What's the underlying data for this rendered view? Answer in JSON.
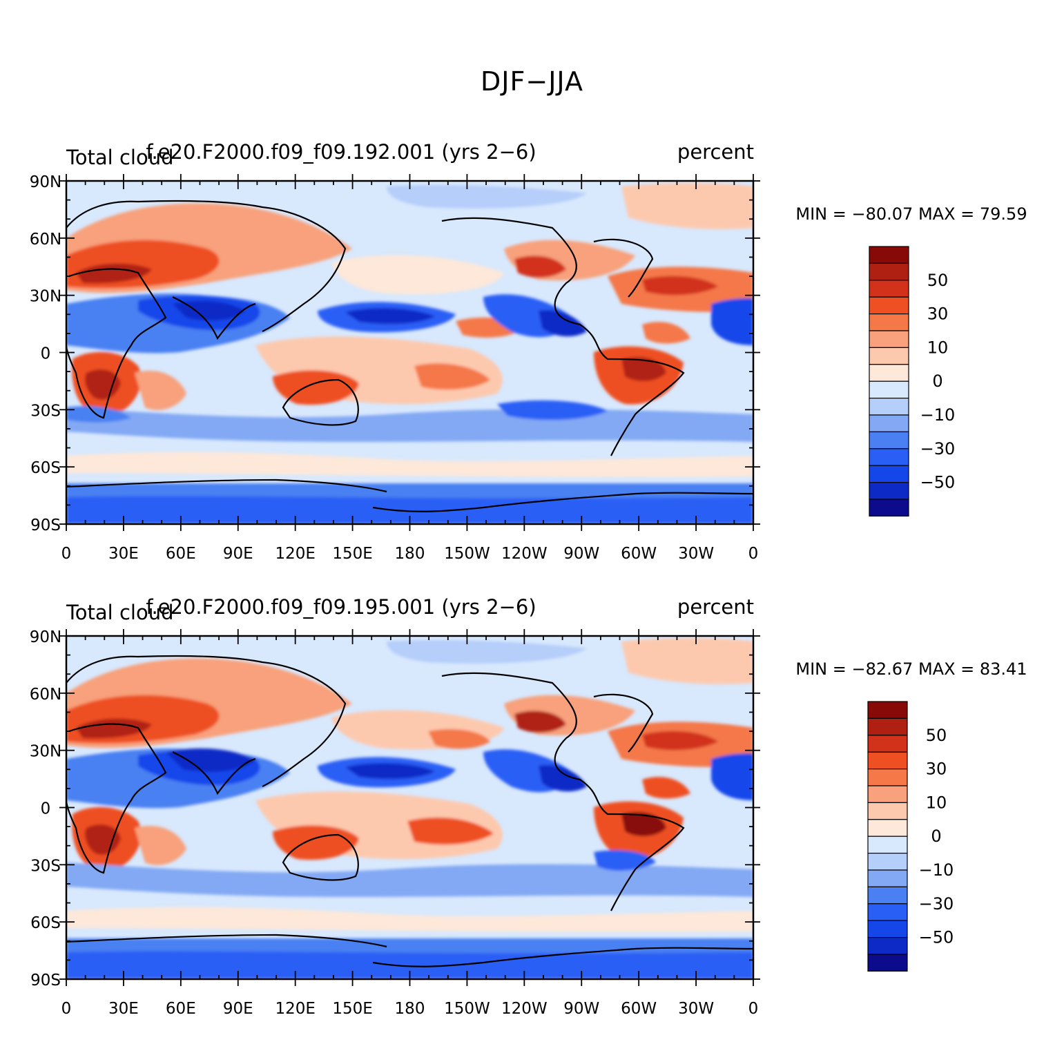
{
  "title": "DJF−JJA",
  "colors": {
    "levels": [
      "#0b0b8c",
      "#0d2ac7",
      "#1446ea",
      "#2a5ff5",
      "#4a80f2",
      "#83a9f4",
      "#b5cefa",
      "#d8e8fd",
      "#fde8d9",
      "#fdc9ae",
      "#f8a17c",
      "#f47848",
      "#ee5024",
      "#d2321a",
      "#b02012",
      "#880a08"
    ],
    "land_outline": "#000000"
  },
  "colorbar": {
    "tick_labels": [
      "50",
      "30",
      "10",
      "0",
      "−10",
      "−30",
      "−50"
    ]
  },
  "axes": {
    "y_ticks": [
      "90N",
      "60N",
      "30N",
      "0",
      "30S",
      "60S",
      "90S"
    ],
    "x_ticks": [
      "0",
      "30E",
      "60E",
      "90E",
      "120E",
      "150E",
      "180",
      "150W",
      "120W",
      "90W",
      "60W",
      "30W",
      "0"
    ]
  },
  "panels": [
    {
      "left_label": "Total cloud",
      "center_label": "f.e20.F2000.f09_f09.192.001 (yrs 2−6)",
      "right_label": "percent",
      "min_max_text": "MIN = −80.07 MAX =   79.59"
    },
    {
      "left_label": "Total cloud",
      "center_label": "f.e20.F2000.f09_f09.195.001 (yrs 2−6)",
      "right_label": "percent",
      "min_max_text": "MIN = −82.67 MAX =   83.41"
    }
  ]
}
